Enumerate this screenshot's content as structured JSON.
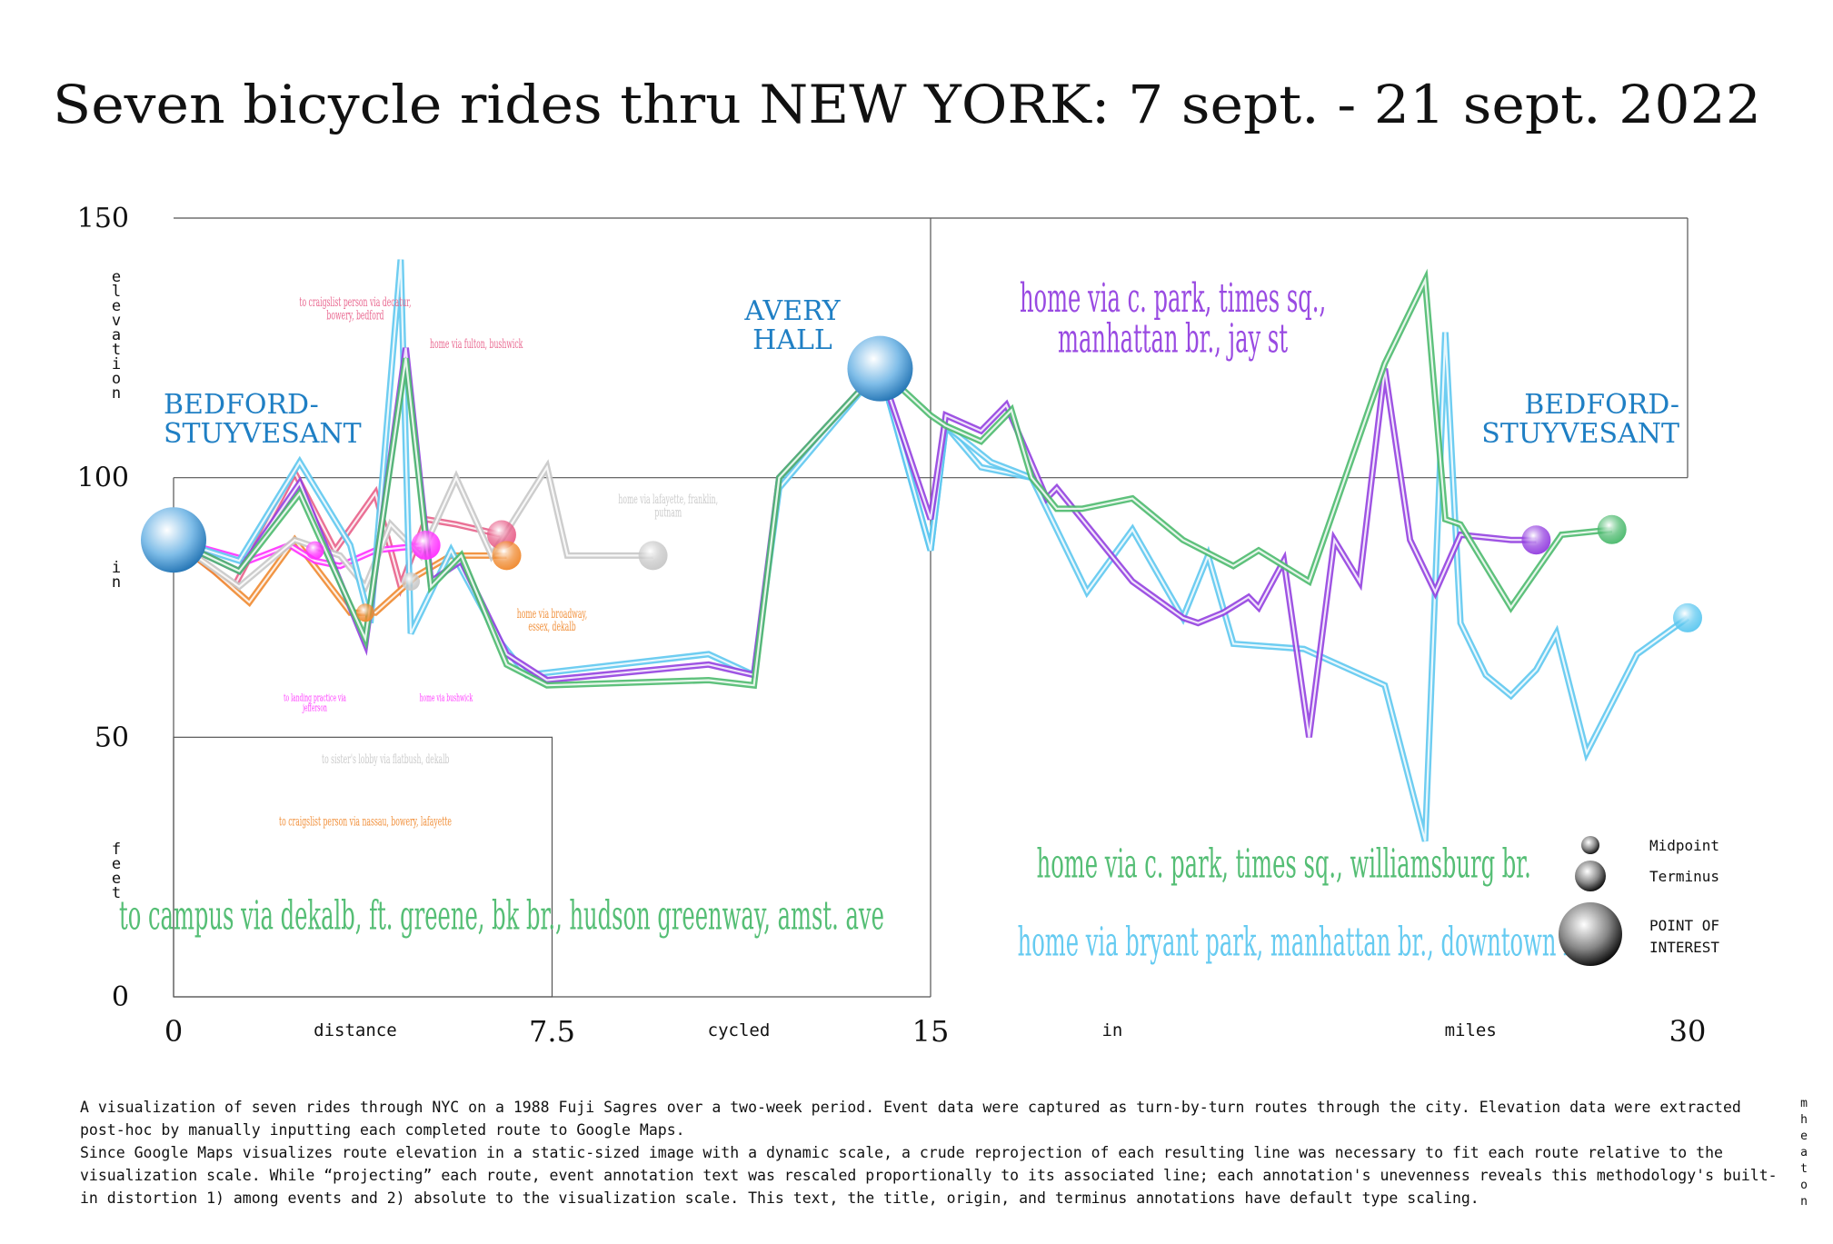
{
  "chart_data": {
    "type": "line",
    "title": "Seven bicycle rides thru NEW YORK: 7 sept. - 21 sept. 2022",
    "xlabel_words": [
      "distance",
      "cycled",
      "in",
      "miles"
    ],
    "ylabel_words": [
      "elevation",
      "in",
      "feet"
    ],
    "xlim": [
      0,
      30
    ],
    "ylim": [
      0,
      150
    ],
    "x_ticks": [
      {
        "value": 0,
        "label": "0"
      },
      {
        "value": 7.5,
        "label": "7.5"
      },
      {
        "value": 15,
        "label": "15"
      },
      {
        "value": 30,
        "label": "30"
      }
    ],
    "y_ticks": [
      {
        "value": 0,
        "label": "0"
      },
      {
        "value": 50,
        "label": "50"
      },
      {
        "value": 100,
        "label": "100"
      },
      {
        "value": 150,
        "label": "150"
      }
    ],
    "places": [
      {
        "label": "BEDFORD-\nSTUYVESANT",
        "x": 0,
        "y": 88,
        "color": "#1f7fc4"
      },
      {
        "label": "AVERY\nHALL",
        "x": 14.0,
        "y": 121,
        "color": "#1f7fc4"
      },
      {
        "label": "BEDFORD-\nSTUYVESANT",
        "x": 30,
        "y": 100,
        "color": "#1f7fc4"
      }
    ],
    "series": [
      {
        "color": "#e8608a",
        "x": [
          0,
          1.2,
          2.4,
          3.2,
          4.0,
          4.5,
          5.0,
          5.6,
          6.5
        ],
        "y": [
          88,
          79,
          101,
          86,
          97,
          79,
          92,
          91,
          89
        ],
        "end_marker": "terminus",
        "annotation": {
          "text": "to craigslist person via decatur,\nbowery, bedford",
          "x": 3.6,
          "y": 133,
          "size": 14
        },
        "annotation2": {
          "text": "home via fulton, bushwick",
          "x": 6.0,
          "y": 125,
          "size": 14
        }
      },
      {
        "color": "#f08a30",
        "x": [
          0,
          0.8,
          1.5,
          2.4,
          3.5,
          4.0,
          4.8,
          5.5,
          6.6
        ],
        "y": [
          88,
          82,
          76,
          88,
          74,
          74,
          81,
          85,
          85
        ],
        "end_marker": "terminus",
        "midpoint": {
          "x": 3.8,
          "y": 74
        },
        "annotation": {
          "text": "home via broadway,\nessex, dekalb",
          "x": 7.5,
          "y": 73,
          "size": 14
        },
        "annotation2": {
          "text": "to craigslist person via nassau, bowery, lafayette",
          "x": 3.8,
          "y": 33,
          "size": 14
        }
      },
      {
        "color": "#ff30ff",
        "x": [
          0,
          1.5,
          2.3,
          2.8,
          3.3,
          4.0,
          5.0
        ],
        "y": [
          88,
          84,
          87,
          84,
          83,
          86,
          87
        ],
        "end_marker": "terminus",
        "midpoint": {
          "x": 2.8,
          "y": 86
        },
        "annotation": {
          "text": "to landing practice via\njefferson",
          "x": 2.8,
          "y": 57,
          "size": 11
        },
        "annotation2": {
          "text": "home via bushwick",
          "x": 5.4,
          "y": 57,
          "size": 11
        }
      },
      {
        "color": "#c8c8c8",
        "x": [
          0,
          1.3,
          2.4,
          3.3,
          3.8,
          4.3,
          4.9,
          5.6,
          6.3,
          7.4,
          7.8,
          9.5
        ],
        "y": [
          88,
          79,
          88,
          85,
          79,
          91,
          85,
          100,
          85,
          102,
          85,
          85
        ],
        "end_marker": "terminus",
        "midpoint": {
          "x": 4.7,
          "y": 80
        },
        "annotation": {
          "text": "home via lafayette, franklin,\nputnam",
          "x": 9.8,
          "y": 95,
          "size": 14
        },
        "annotation2": {
          "text": "to sister's lobby via flatbush, dekalb",
          "x": 4.2,
          "y": 45,
          "size": 14
        }
      },
      {
        "color": "#5ec8f0",
        "x": [
          0,
          1.3,
          2.5,
          3.5,
          3.9,
          4.5,
          4.7,
          5.5,
          6.5,
          7.0,
          10.6,
          11.5,
          12.0,
          14.0,
          15.0,
          15.3,
          16.0,
          17.0
        ],
        "y": [
          88,
          84,
          103,
          87,
          72,
          142,
          70,
          86,
          68,
          62,
          66,
          62,
          98,
          121,
          86,
          110,
          102,
          100
        ],
        "marker_end_x": 14.0,
        "phase": "out"
      },
      {
        "color": "#5ec8f0",
        "x": [
          14.0,
          15.0,
          15.3,
          16.2,
          17.0,
          18.1,
          19.0,
          20.0,
          20.5,
          21.0,
          22.4,
          24.0,
          24.8,
          25.2,
          25.5,
          26.0,
          26.5,
          27.0,
          27.4,
          28.0,
          29.0,
          30.0
        ],
        "y": [
          121,
          86,
          110,
          103,
          100,
          78,
          90,
          73,
          85,
          68,
          67,
          60,
          30,
          128,
          72,
          62,
          58,
          63,
          70,
          47,
          66,
          73
        ],
        "end_marker": "terminus",
        "annotation": {
          "text": "home via bryant park, manhattan br., downtown bk",
          "x": 22.4,
          "y": 8,
          "size": 44
        },
        "phase": "back"
      },
      {
        "color": "#9440e0",
        "x": [
          0,
          1.3,
          2.5,
          3.8,
          4.6,
          5.1,
          5.7,
          6.6,
          7.4,
          10.6,
          11.5,
          12.0,
          14.0,
          15.0,
          15.3,
          16.0,
          16.5,
          17.3,
          17.5,
          18.5,
          19.0,
          20.0,
          20.3,
          20.8,
          21.3,
          21.5,
          22.0,
          22.5,
          23.0,
          23.5,
          24.0,
          24.5,
          25.0,
          25.5,
          26.5,
          27.0
        ],
        "y": [
          88,
          82,
          99,
          68,
          125,
          80,
          84,
          66,
          61,
          64,
          62,
          100,
          121,
          92,
          112,
          109,
          114,
          96,
          98,
          86,
          80,
          73,
          72,
          74,
          77,
          75,
          84,
          50,
          88,
          80,
          121,
          88,
          78,
          89,
          88,
          88
        ],
        "end_marker": "terminus",
        "annotation": {
          "text": "home via c. park, times sq.,\nmanhattan br., jay st",
          "x": 19.8,
          "y": 132,
          "size": 44
        }
      },
      {
        "color": "#4cba6e",
        "x": [
          0,
          1.3,
          2.5,
          3.8,
          4.6,
          5.1,
          5.7,
          6.6,
          7.4,
          10.6,
          11.5,
          12.0,
          14.0,
          15.0,
          15.3,
          16.0,
          16.6,
          17.0,
          17.5,
          18.0,
          19.0,
          20.0,
          21.0,
          21.5,
          22.5,
          24.0,
          24.8,
          25.2,
          25.5,
          26.5,
          27.5,
          28.5
        ],
        "y": [
          88,
          82,
          97,
          69,
          123,
          79,
          85,
          64,
          60,
          61,
          60,
          100,
          121,
          112,
          110,
          107,
          113,
          100,
          94,
          94,
          96,
          88,
          83,
          86,
          80,
          122,
          138,
          92,
          91,
          75,
          89,
          90
        ],
        "end_marker": "terminus",
        "annotation": {
          "text": "home via c. park, times sq., williamsburg br.",
          "x": 22.0,
          "y": 23,
          "size": 44
        },
        "annotation2": {
          "text": "to campus via dekalb, ft. greene, bk br., hudson greenway, amst. ave",
          "x": 6.5,
          "y": 13,
          "size": 44
        }
      }
    ],
    "legend": [
      {
        "label": "Midpoint",
        "kind": "midpoint"
      },
      {
        "label": "Terminus",
        "kind": "terminus"
      },
      {
        "label": "POINT OF\nINTEREST",
        "kind": "poi"
      }
    ]
  },
  "note": {
    "paragraph_1": "A visualization of seven rides through NYC on a 1988 Fuji Sagres over a two-week period. Event data were captured as turn-by-turn routes through the city. Elevation data were extracted post-hoc by manually inputting each completed route to Google Maps.",
    "paragraph_2": "Since Google Maps visualizes route elevation in a static-sized image with a dynamic scale, a crude reprojection of each resulting line was necessary to fit each route relative to the visualization scale. While “projecting” each route, event annotation text was rescaled proportionally to its associated line; each annotation's unevenness reveals this methodology's built-in distortion 1) among events and 2) absolute to the visualization scale. This text, the title, origin, and terminus annotations have default type scaling."
  },
  "signature": "mheaton"
}
